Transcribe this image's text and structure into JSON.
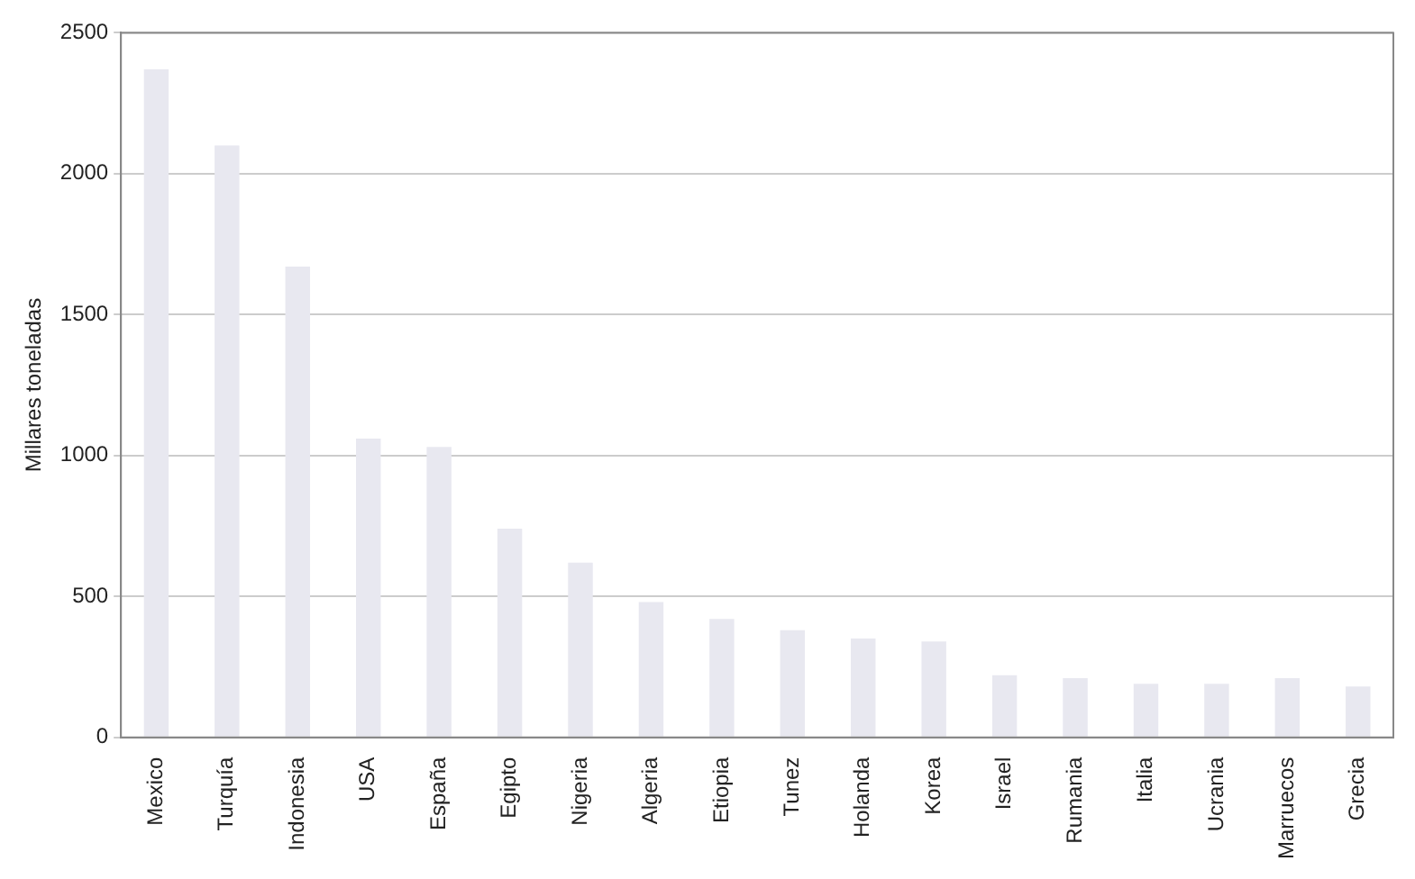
{
  "chart_data": {
    "type": "bar",
    "ylabel": "Millares toneladas",
    "categories": [
      "Mexico",
      "Turquía",
      "Indonesia",
      "USA",
      "España",
      "Egipto",
      "Nigeria",
      "Algeria",
      "Etiopia",
      "Tunez",
      "Holanda",
      "Korea",
      "Israel",
      "Rumania",
      "Italia",
      "Ucrania",
      "Marruecos",
      "Grecia"
    ],
    "values": [
      2370,
      2100,
      1670,
      1060,
      1030,
      740,
      620,
      480,
      420,
      380,
      350,
      340,
      220,
      210,
      190,
      190,
      210,
      180
    ],
    "color": "#e8e8f0",
    "ylim": [
      0,
      2500
    ],
    "yticks": [
      0,
      500,
      1000,
      1500,
      2000,
      2500
    ],
    "grid": "y",
    "legend": false
  }
}
